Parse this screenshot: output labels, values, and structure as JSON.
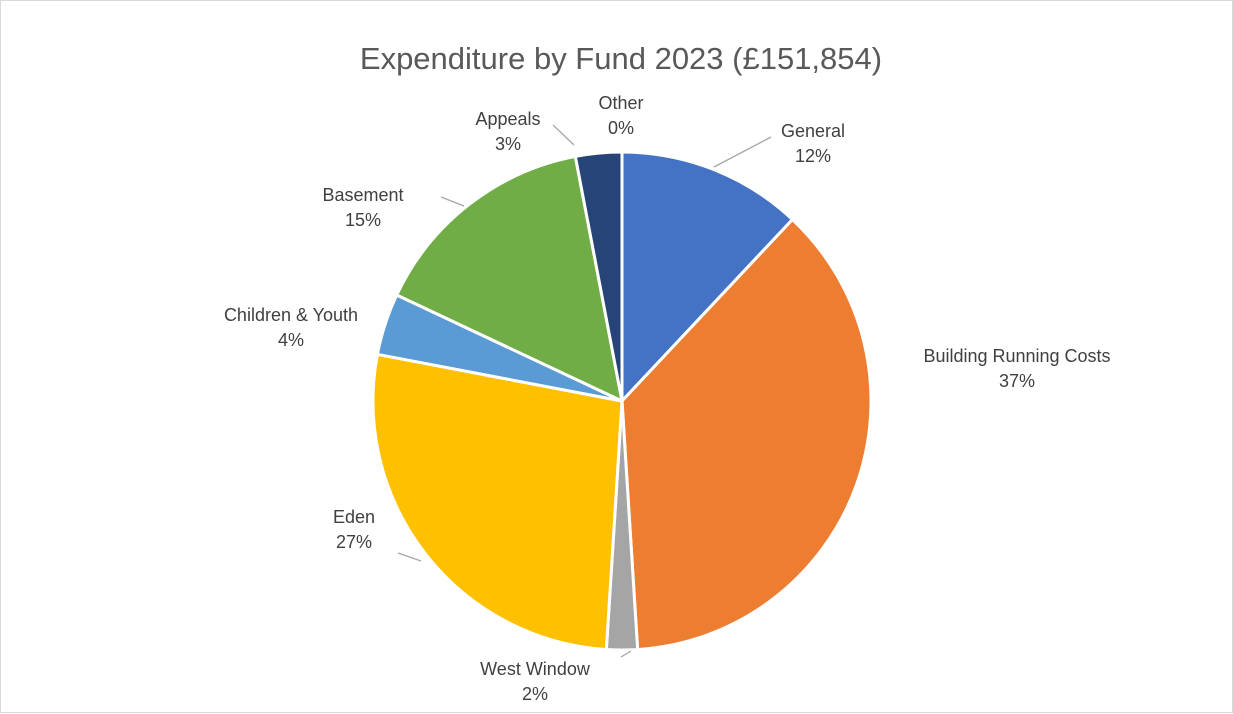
{
  "chart_data": {
    "type": "pie",
    "title": "Expenditure by Fund 2023 (£151,854)",
    "slices": [
      {
        "name": "General",
        "value": 12,
        "label": "12%",
        "color": "#4472C4"
      },
      {
        "name": "Building Running Costs",
        "value": 37,
        "label": "37%",
        "color": "#ED7D31"
      },
      {
        "name": "West Window",
        "value": 2,
        "label": "2%",
        "color": "#A5A5A5"
      },
      {
        "name": "Eden",
        "value": 27,
        "label": "27%",
        "color": "#FFC000"
      },
      {
        "name": "Children & Youth",
        "value": 4,
        "label": "4%",
        "color": "#5B9BD5"
      },
      {
        "name": "Basement",
        "value": 15,
        "label": "15%",
        "color": "#70AD47"
      },
      {
        "name": "Appeals",
        "value": 3,
        "label": "3%",
        "color": "#264478"
      },
      {
        "name": "Other",
        "value": 0,
        "label": "0%",
        "color": "#9E480E"
      }
    ],
    "start_angle": "12 o'clock",
    "direction": "clockwise",
    "data_labels": "category name and percentage, outside with leader lines",
    "legend": "none"
  }
}
